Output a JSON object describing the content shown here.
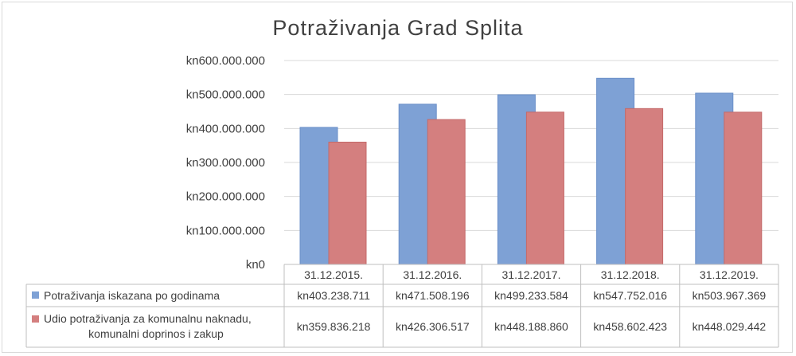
{
  "chart_data": {
    "type": "bar",
    "title": "Potraživanja Grad Splita",
    "categories": [
      "31.12.2015.",
      "31.12.2016.",
      "31.12.2017.",
      "31.12.2018.",
      "31.12.2019."
    ],
    "series": [
      {
        "name": "Potraživanja iskazana po godinama",
        "values": [
          403238711,
          471508196,
          499233584,
          547752016,
          503967369
        ],
        "labels": [
          "kn403.238.711",
          "kn471.508.196",
          "kn499.233.584",
          "kn547.752.016",
          "kn503.967.369"
        ],
        "color": "#7ea1d5"
      },
      {
        "name_lines": [
          "Udio potraživanja za komunalnu naknadu,",
          "komunalni doprinos i zakup"
        ],
        "values": [
          359836218,
          426306517,
          448188860,
          458602423,
          448029442
        ],
        "labels": [
          "kn359.836.218",
          "kn426.306.517",
          "kn448.188.860",
          "kn458.602.423",
          "kn448.029.442"
        ],
        "color": "#d47f7f"
      }
    ],
    "ylim": [
      0,
      600000000
    ],
    "yticks": [
      0,
      100000000,
      200000000,
      300000000,
      400000000,
      500000000,
      600000000
    ],
    "ytick_labels": [
      "kn0",
      "kn100.000.000",
      "kn200.000.000",
      "kn300.000.000",
      "kn400.000.000",
      "kn500.000.000",
      "kn600.000.000"
    ],
    "grid": true,
    "legend": "data-table"
  }
}
